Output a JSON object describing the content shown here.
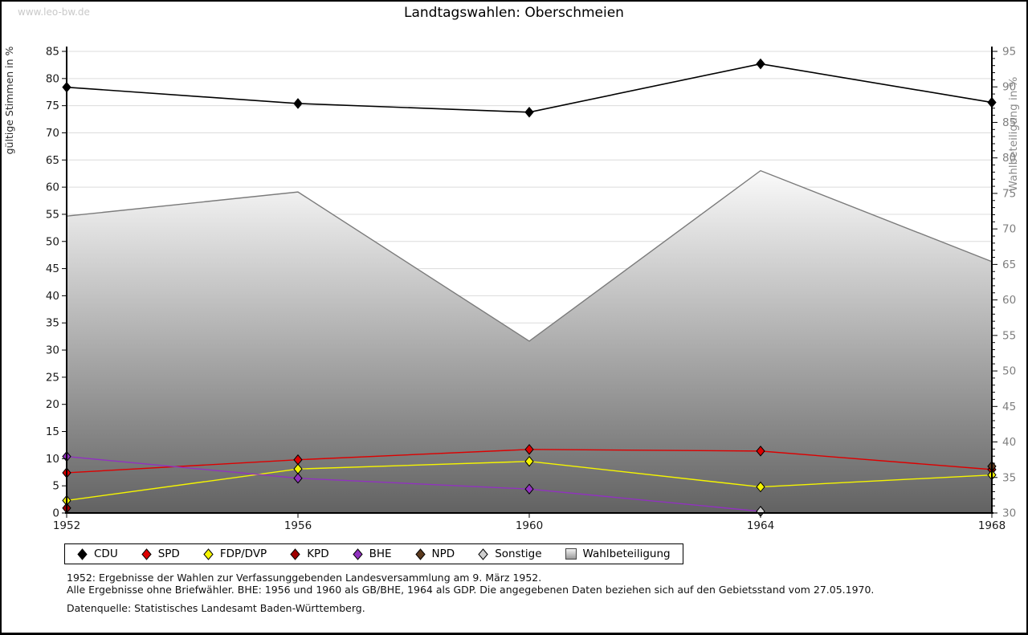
{
  "page": {
    "watermark": "www.leo-bw.de",
    "title": "Landtagswahlen: Oberschmeien"
  },
  "chart_data": {
    "type": "line",
    "title": "Landtagswahlen: Oberschmeien",
    "categories": [
      "1952",
      "1956",
      "1960",
      "1964",
      "1968"
    ],
    "left_axis": {
      "label": "gültige Stimmen in %",
      "min": 0,
      "max": 85,
      "step": 5
    },
    "right_axis": {
      "label": "Wahlbeteiligung in %",
      "min": 30,
      "max": 95,
      "step": 5,
      "minor_step": 1
    },
    "grid": true,
    "legend_position": "bottom",
    "series": [
      {
        "name": "CDU",
        "type": "line",
        "axis": "left",
        "color": "#000000",
        "values": [
          78.4,
          75.4,
          73.8,
          82.7,
          75.6
        ]
      },
      {
        "name": "SPD",
        "type": "line",
        "axis": "left",
        "color": "#dd0000",
        "values": [
          7.4,
          9.8,
          11.7,
          11.4,
          8.0
        ]
      },
      {
        "name": "FDP/DVP",
        "type": "line",
        "axis": "left",
        "color": "#f5f500",
        "values": [
          2.3,
          8.1,
          9.5,
          4.8,
          7.0
        ]
      },
      {
        "name": "KPD",
        "type": "line",
        "axis": "left",
        "color": "#a00000",
        "values": [
          0.9,
          null,
          null,
          null,
          null
        ]
      },
      {
        "name": "BHE",
        "type": "line",
        "axis": "left",
        "color": "#9132bf",
        "values": [
          10.4,
          6.4,
          4.4,
          0.3,
          null
        ]
      },
      {
        "name": "NPD",
        "type": "line",
        "axis": "left",
        "color": "#5c3a1e",
        "values": [
          null,
          null,
          null,
          null,
          8.6
        ]
      },
      {
        "name": "Sonstige",
        "type": "line",
        "axis": "left",
        "color": "#cfcfcf",
        "values": [
          null,
          null,
          null,
          0.3,
          null
        ]
      },
      {
        "name": "Wahlbeteiligung",
        "type": "area",
        "axis": "right",
        "color": "#7b7b7b",
        "gradient": [
          "#fafafa",
          "#626262"
        ],
        "values": [
          71.8,
          75.2,
          54.2,
          78.2,
          65.4
        ]
      }
    ]
  },
  "footer": {
    "note1": "1952: Ergebnisse der Wahlen zur Verfassunggebenden Landesversammlung am 9. März 1952.",
    "note2": "Alle Ergebnisse ohne Briefwähler. BHE: 1956 und 1960 als GB/BHE, 1964 als GDP. Die angegebenen Daten beziehen sich auf den Gebietsstand vom 27.05.1970.",
    "source": "Datenquelle: Statistisches Landesamt Baden-Württemberg."
  }
}
